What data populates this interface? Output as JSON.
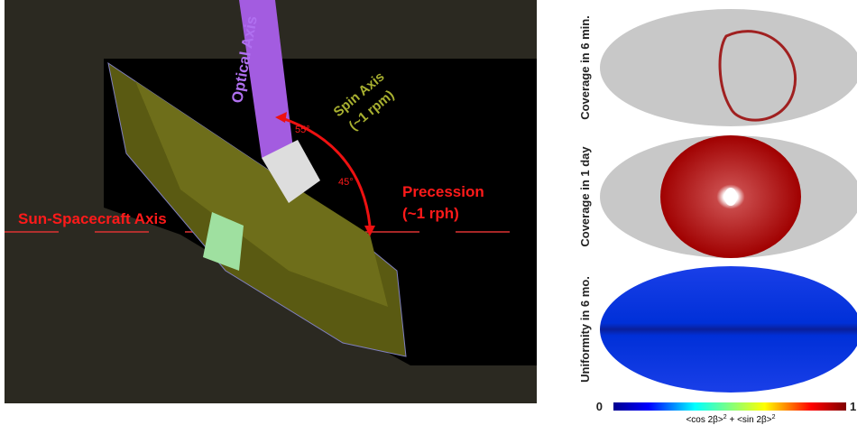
{
  "left_panel": {
    "optical_axis": "Optical Axis",
    "spin_axis": [
      "Spin Axis",
      "(~1 rpm)"
    ],
    "angle_1": "55°",
    "angle_2": "45°",
    "precession": [
      "Precession",
      "(~1 rph)"
    ],
    "sun_axis": "Sun-Spacecraft Axis"
  },
  "right_panel": {
    "maps": [
      {
        "label": "Coverage in 6 min."
      },
      {
        "label": "Coverage in 1 day"
      },
      {
        "label": "Uniformity in 6 mo."
      }
    ],
    "colorbar": {
      "min": "0",
      "max": "1",
      "label_parts": [
        "<cos 2β>",
        "2",
        " + <sin 2β>",
        "2"
      ]
    }
  }
}
